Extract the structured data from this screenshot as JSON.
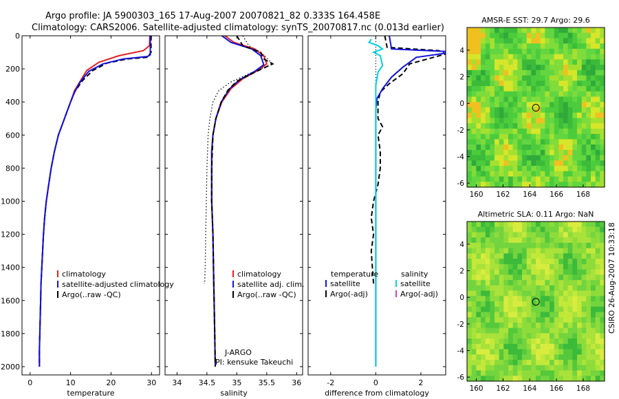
{
  "header": {
    "line1": "Argo profile: JA 5900303_165 17-Aug-2007 20070821_82 0.333S 164.458E",
    "line2": "Climatology: CARS2006. Satellite-adjusted climatology: synTS_20070817.nc (0.013d earlier)"
  },
  "footer": {
    "stamp": "CSIRO 26-Aug-2007 10:33:18"
  },
  "chart_data": [
    {
      "id": "temperature",
      "type": "line",
      "xlabel": "temperature",
      "ylabel": "",
      "xlim": [
        -2,
        32
      ],
      "ylim": [
        2050,
        0
      ],
      "xticks": [
        0,
        10,
        20,
        30
      ],
      "yticks": [
        0,
        200,
        400,
        600,
        800,
        1000,
        1200,
        1400,
        1600,
        1800,
        2000
      ],
      "legend": [
        "climatology",
        "satellite-adjusted climatology",
        "Argo(..raw -QC)"
      ],
      "series": [
        {
          "name": "climatology",
          "color": "#e02020",
          "dash": "",
          "points": [
            [
              29.6,
              0
            ],
            [
              29.5,
              60
            ],
            [
              28,
              90
            ],
            [
              22,
              120
            ],
            [
              17,
              160
            ],
            [
              14,
              210
            ],
            [
              12.5,
              270
            ],
            [
              11,
              330
            ],
            [
              10,
              400
            ],
            [
              8.5,
              500
            ],
            [
              7,
              600
            ],
            [
              6,
              700
            ],
            [
              5.2,
              800
            ],
            [
              4.6,
              900
            ],
            [
              4,
              1000
            ],
            [
              3.6,
              1100
            ],
            [
              3.3,
              1200
            ],
            [
              3.1,
              1300
            ],
            [
              2.9,
              1400
            ],
            [
              2.7,
              1500
            ],
            [
              2.6,
              1600
            ],
            [
              2.5,
              1700
            ],
            [
              2.4,
              1800
            ],
            [
              2.3,
              1900
            ],
            [
              2.3,
              2000
            ]
          ]
        },
        {
          "name": "Argo(..raw -QC)",
          "color": "#000000",
          "dash": "7,4",
          "points": [
            [
              29.9,
              0
            ],
            [
              29.9,
              100
            ],
            [
              29,
              130
            ],
            [
              24,
              140
            ],
            [
              19,
              165
            ],
            [
              15.5,
              210
            ],
            [
              13,
              270
            ],
            [
              11,
              340
            ],
            [
              10,
              400
            ],
            [
              8.5,
              500
            ],
            [
              7,
              600
            ],
            [
              6,
              700
            ],
            [
              5.2,
              800
            ],
            [
              4.6,
              900
            ],
            [
              4,
              1000
            ],
            [
              3.6,
              1100
            ],
            [
              3.3,
              1200
            ],
            [
              3.1,
              1300
            ],
            [
              2.9,
              1400
            ],
            [
              2.7,
              1500
            ],
            [
              2.6,
              1600
            ],
            [
              2.5,
              1700
            ],
            [
              2.4,
              1800
            ],
            [
              2.3,
              1900
            ],
            [
              2.3,
              2000
            ]
          ]
        },
        {
          "name": "satellite-adjusted climatology",
          "color": "#1010dd",
          "dash": "",
          "points": [
            [
              29.7,
              0
            ],
            [
              29.7,
              115
            ],
            [
              29,
              125
            ],
            [
              23,
              140
            ],
            [
              18,
              170
            ],
            [
              14.5,
              215
            ],
            [
              12.5,
              275
            ],
            [
              11,
              340
            ],
            [
              10,
              400
            ],
            [
              8.5,
              500
            ],
            [
              7,
              600
            ],
            [
              6,
              700
            ],
            [
              5.2,
              800
            ],
            [
              4.6,
              900
            ],
            [
              4,
              1000
            ],
            [
              3.6,
              1100
            ],
            [
              3.3,
              1200
            ],
            [
              3.1,
              1300
            ],
            [
              2.9,
              1400
            ],
            [
              2.7,
              1500
            ],
            [
              2.6,
              1600
            ],
            [
              2.5,
              1700
            ],
            [
              2.4,
              1800
            ],
            [
              2.3,
              1900
            ],
            [
              2.3,
              2000
            ]
          ]
        }
      ]
    },
    {
      "id": "salinity",
      "type": "line",
      "xlabel": "salinity",
      "ylabel": "",
      "xlim": [
        33.8,
        36.1
      ],
      "ylim": [
        2050,
        0
      ],
      "xticks": [
        34,
        34.5,
        35,
        35.5,
        36
      ],
      "xtick_labels": [
        "34",
        "34.5",
        "35",
        "35.5",
        "36"
      ],
      "yticks": [
        0,
        200,
        400,
        600,
        800,
        1000,
        1200,
        1400,
        1600,
        1800,
        2000
      ],
      "legend": [
        "climatology",
        "satellite adj. clim.",
        "Argo(..raw -QC)"
      ],
      "annotation": [
        "J-ARGO",
        "PI: kensuke Takeuchi"
      ],
      "series": [
        {
          "name": "Argo dotted",
          "color": "#000000",
          "dash": "1.5,3",
          "points": [
            [
              35.1,
              0
            ],
            [
              35.2,
              60
            ],
            [
              35.4,
              100
            ],
            [
              35.6,
              170
            ],
            [
              35.2,
              230
            ],
            [
              34.9,
              280
            ],
            [
              34.7,
              330
            ],
            [
              34.6,
              400
            ],
            [
              34.55,
              500
            ],
            [
              34.52,
              600
            ],
            [
              34.5,
              800
            ],
            [
              34.49,
              1000
            ],
            [
              34.48,
              1200
            ],
            [
              34.47,
              1400
            ],
            [
              34.46,
              1500
            ]
          ]
        },
        {
          "name": "climatology",
          "color": "#e02020",
          "dash": "",
          "points": [
            [
              34.8,
              0
            ],
            [
              34.95,
              40
            ],
            [
              35.3,
              80
            ],
            [
              35.45,
              120
            ],
            [
              35.5,
              170
            ],
            [
              35.35,
              210
            ],
            [
              35.1,
              260
            ],
            [
              34.9,
              320
            ],
            [
              34.75,
              400
            ],
            [
              34.65,
              500
            ],
            [
              34.6,
              600
            ],
            [
              34.58,
              700
            ],
            [
              34.58,
              800
            ],
            [
              34.58,
              1000
            ],
            [
              34.6,
              1200
            ],
            [
              34.61,
              1400
            ],
            [
              34.62,
              1600
            ],
            [
              34.63,
              1800
            ],
            [
              34.64,
              2000
            ]
          ]
        },
        {
          "name": "satellite adj. clim.",
          "color": "#1010dd",
          "dash": "",
          "points": [
            [
              34.75,
              0
            ],
            [
              34.9,
              40
            ],
            [
              35.25,
              80
            ],
            [
              35.4,
              120
            ],
            [
              35.45,
              175
            ],
            [
              35.3,
              215
            ],
            [
              35.05,
              265
            ],
            [
              34.88,
              320
            ],
            [
              34.74,
              400
            ],
            [
              34.65,
              500
            ],
            [
              34.6,
              600
            ],
            [
              34.58,
              700
            ],
            [
              34.58,
              800
            ],
            [
              34.58,
              1000
            ],
            [
              34.6,
              1200
            ],
            [
              34.61,
              1400
            ],
            [
              34.62,
              1600
            ],
            [
              34.63,
              1800
            ],
            [
              34.64,
              2000
            ]
          ]
        },
        {
          "name": "Argo(..raw -QC)",
          "color": "#000000",
          "dash": "7,4",
          "points": [
            [
              35.0,
              0
            ],
            [
              35.1,
              60
            ],
            [
              35.4,
              100
            ],
            [
              35.45,
              140
            ],
            [
              35.6,
              170
            ],
            [
              35.3,
              220
            ],
            [
              35.0,
              275
            ],
            [
              34.85,
              330
            ],
            [
              34.74,
              400
            ],
            [
              34.65,
              500
            ],
            [
              34.6,
              600
            ],
            [
              34.58,
              800
            ],
            [
              34.58,
              1000
            ],
            [
              34.6,
              1200
            ],
            [
              34.61,
              1400
            ],
            [
              34.62,
              1600
            ],
            [
              34.63,
              1800
            ],
            [
              34.64,
              2000
            ]
          ]
        }
      ]
    },
    {
      "id": "difference",
      "type": "line",
      "xlabel": "difference from climatology",
      "ylabel": "",
      "xlim": [
        -3,
        3.1
      ],
      "ylim": [
        2050,
        0
      ],
      "xticks": [
        -2,
        0,
        2
      ],
      "yticks": [
        0,
        200,
        400,
        600,
        800,
        1000,
        1200,
        1400,
        1600,
        1800,
        2000
      ],
      "legend_temperature_title": "temperature",
      "legend_salinity_title": "salinity",
      "legend_temperature": [
        "satellite",
        "Argo(-adj)"
      ],
      "legend_salinity": [
        "satellite",
        "Argo(-adj)"
      ],
      "series": [
        {
          "name": "zero line",
          "color": "#000000",
          "dash": "1,3",
          "points": [
            [
              0,
              0
            ],
            [
              0,
              2000
            ]
          ]
        },
        {
          "name": "temperature Argo(-adj)",
          "color": "#000000",
          "dash": "7,4",
          "points": [
            [
              0.4,
              0
            ],
            [
              0.5,
              70
            ],
            [
              2.8,
              90
            ],
            [
              3.1,
              110
            ],
            [
              1.5,
              170
            ],
            [
              1.2,
              230
            ],
            [
              0.6,
              290
            ],
            [
              0.2,
              340
            ],
            [
              0.1,
              400
            ],
            [
              0.1,
              500
            ],
            [
              0.3,
              550
            ],
            [
              0.1,
              600
            ],
            [
              0.2,
              700
            ],
            [
              0.2,
              800
            ],
            [
              0.1,
              900
            ],
            [
              -0.1,
              1000
            ],
            [
              -0.2,
              1100
            ],
            [
              -0.1,
              1200
            ],
            [
              -0.2,
              1300
            ],
            [
              -0.15,
              1400
            ],
            [
              -0.1,
              1500
            ]
          ]
        },
        {
          "name": "temperature satellite",
          "color": "#1010dd",
          "dash": "",
          "points": [
            [
              0.6,
              0
            ],
            [
              0.7,
              80
            ],
            [
              3.1,
              95
            ],
            [
              3.1,
              105
            ],
            [
              1.8,
              130
            ],
            [
              1.2,
              190
            ],
            [
              0.7,
              250
            ],
            [
              0.3,
              320
            ],
            [
              0.05,
              380
            ],
            [
              0.0,
              450
            ],
            [
              0.0,
              600
            ],
            [
              0.0,
              800
            ],
            [
              0.0,
              1000
            ],
            [
              0.0,
              1200
            ],
            [
              0.0,
              1400
            ],
            [
              0.0,
              1600
            ],
            [
              0.0,
              1800
            ],
            [
              0.0,
              2000
            ]
          ]
        },
        {
          "name": "salinity satellite",
          "color": "#00d0e0",
          "dash": "",
          "points": [
            [
              -0.2,
              20
            ],
            [
              -0.3,
              40
            ],
            [
              0.1,
              60
            ],
            [
              0.3,
              80
            ],
            [
              -0.1,
              100
            ],
            [
              0.2,
              120
            ],
            [
              0.3,
              180
            ],
            [
              0.1,
              220
            ],
            [
              0.0,
              300
            ],
            [
              0.0,
              500
            ],
            [
              0.0,
              800
            ],
            [
              0.0,
              1200
            ],
            [
              0.0,
              1600
            ],
            [
              0.0,
              2000
            ]
          ]
        },
        {
          "name": "salinity Argo(-adj)",
          "color": "#d040d0",
          "dash": "",
          "points": []
        }
      ]
    },
    {
      "id": "sst_map",
      "type": "heatmap",
      "title": "AMSR-E SST: 29.7 Argo: 29.6",
      "xlim": [
        159.3,
        169.6
      ],
      "ylim": [
        -6.3,
        5.7
      ],
      "xticks": [
        160,
        162,
        164,
        166,
        168
      ],
      "yticks": [
        4,
        2,
        0,
        -2,
        -4,
        -6
      ],
      "marker": [
        164.458,
        -0.333
      ]
    },
    {
      "id": "sla_map",
      "type": "heatmap",
      "title": "Altimetric SLA: 0.11 Argo: NaN",
      "xlim": [
        159.3,
        169.6
      ],
      "ylim": [
        -6.3,
        5.7
      ],
      "xticks": [
        160,
        162,
        164,
        166,
        168
      ],
      "yticks": [
        4,
        2,
        0,
        -2,
        -4,
        -6
      ],
      "marker": [
        164.458,
        -0.333
      ]
    }
  ]
}
